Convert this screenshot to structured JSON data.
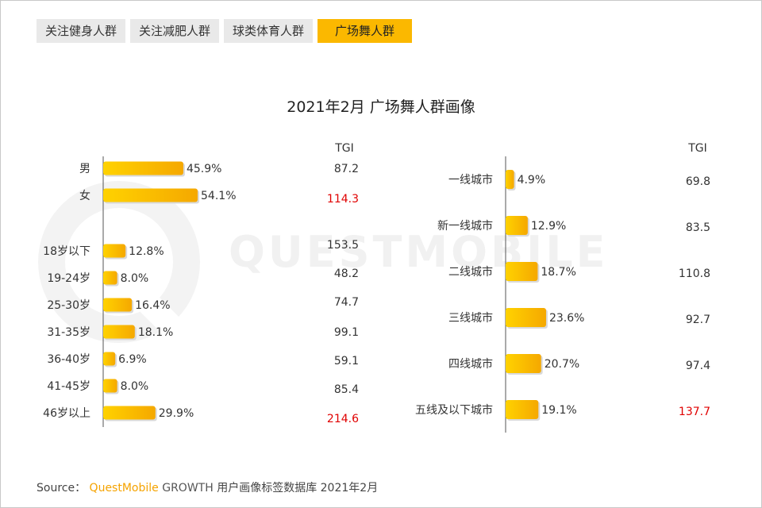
{
  "tabs": [
    {
      "label": "关注健身人群",
      "active": false
    },
    {
      "label": "关注减肥人群",
      "active": false
    },
    {
      "label": "球类体育人群",
      "active": false
    },
    {
      "label": "广场舞人群",
      "active": true
    }
  ],
  "watermark": "QUESTMOBILE",
  "source": {
    "prefix": "Source：",
    "brand": "QuestMobile",
    "growth": "GROWTH",
    "rest": "用户画像标签数据库 2021年2月"
  },
  "colors": {
    "bar": "#fbb800",
    "highlight": "#e00000",
    "tab_active": "#fbb800"
  },
  "chart_data": [
    {
      "type": "bar",
      "orientation": "horizontal",
      "title": "2021年2月 广场舞人群画像",
      "tgi_header": "TGI",
      "groups": [
        {
          "categories": [
            "男",
            "女"
          ],
          "values": [
            45.9,
            54.1
          ],
          "labels": [
            "45.9%",
            "54.1%"
          ],
          "tgi": [
            "87.2",
            "114.3"
          ],
          "tgi_highlight": [
            false,
            true
          ]
        },
        {
          "categories": [
            "18岁以下",
            "19-24岁",
            "25-30岁",
            "31-35岁",
            "36-40岁",
            "41-45岁",
            "46岁以上"
          ],
          "values": [
            12.8,
            8.0,
            16.4,
            18.1,
            6.9,
            8.0,
            29.9
          ],
          "labels": [
            "12.8%",
            "8.0%",
            "16.4%",
            "18.1%",
            "6.9%",
            "8.0%",
            "29.9%"
          ],
          "tgi": [
            "153.5",
            "48.2",
            "74.7",
            "99.1",
            "59.1",
            "85.4",
            "214.6"
          ],
          "tgi_highlight": [
            false,
            false,
            false,
            false,
            false,
            false,
            true
          ]
        }
      ]
    },
    {
      "type": "bar",
      "orientation": "horizontal",
      "tgi_header": "TGI",
      "categories": [
        "一线城市",
        "新一线城市",
        "二线城市",
        "三线城市",
        "四线城市",
        "五线及以下城市"
      ],
      "values": [
        4.9,
        12.9,
        18.7,
        23.6,
        20.7,
        19.1
      ],
      "labels": [
        "4.9%",
        "12.9%",
        "18.7%",
        "23.6%",
        "20.7%",
        "19.1%"
      ],
      "tgi": [
        "69.8",
        "83.5",
        "110.8",
        "92.7",
        "97.4",
        "137.7"
      ],
      "tgi_highlight": [
        false,
        false,
        false,
        false,
        false,
        true
      ]
    }
  ]
}
